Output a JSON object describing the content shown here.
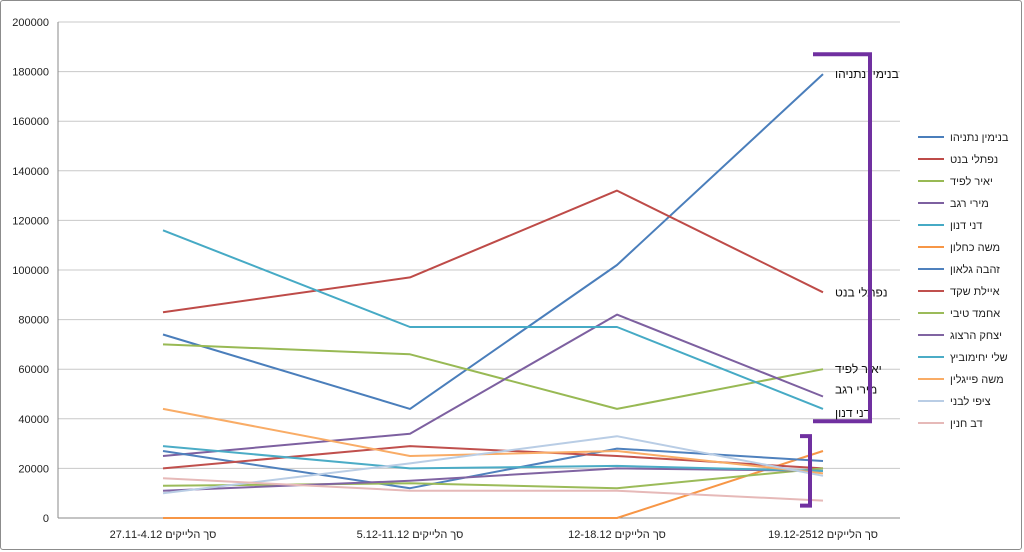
{
  "chart_data": {
    "type": "line",
    "categories": [
      "סך הלייקים 27.11-4.12",
      "סך הלייקים 5.12-11.12",
      "סך הלייקים 12-18.12",
      "סך הלייקים 19.12-2512"
    ],
    "ylim": [
      0,
      200000
    ],
    "yticks": [
      0,
      20000,
      40000,
      60000,
      80000,
      100000,
      120000,
      140000,
      160000,
      180000,
      200000
    ],
    "grid": "horizontal",
    "legend_position": "right",
    "series": [
      {
        "name": "בנימין נתניהו",
        "color": "#4a7ebb",
        "values": [
          74000,
          44000,
          102000,
          179000
        ]
      },
      {
        "name": "נפתלי בנט",
        "color": "#be4b48",
        "values": [
          83000,
          97000,
          132000,
          91000
        ]
      },
      {
        "name": "יאיר לפיד",
        "color": "#98b954",
        "values": [
          70000,
          66000,
          44000,
          60000
        ]
      },
      {
        "name": "מירי רגב",
        "color": "#7d60a0",
        "values": [
          25000,
          34000,
          82000,
          49000
        ]
      },
      {
        "name": "דני דנון",
        "color": "#46aac5",
        "values": [
          116000,
          77000,
          77000,
          44000
        ]
      },
      {
        "name": "משה כחלון",
        "color": "#f79646",
        "values": [
          0,
          0,
          0,
          27000
        ]
      },
      {
        "name": "זהבה גלאון",
        "color": "#4f81bd",
        "values": [
          27000,
          12000,
          28000,
          23000
        ]
      },
      {
        "name": "איילת שקד",
        "color": "#c0504d",
        "values": [
          20000,
          29000,
          25000,
          20000
        ]
      },
      {
        "name": "אחמד טיבי",
        "color": "#9bbb59",
        "values": [
          13000,
          14000,
          12000,
          20000
        ]
      },
      {
        "name": "יצחק הרצוג",
        "color": "#8064a2",
        "values": [
          11000,
          15000,
          20000,
          19000
        ]
      },
      {
        "name": "שלי יחימוביץ",
        "color": "#4bacc6",
        "values": [
          29000,
          20000,
          21000,
          19000
        ]
      },
      {
        "name": "משה פייגלין",
        "color": "#f9ac66",
        "values": [
          44000,
          25000,
          27000,
          18000
        ]
      },
      {
        "name": "ציפי לבני",
        "color": "#b9cde5",
        "values": [
          10000,
          22000,
          33000,
          17000
        ]
      },
      {
        "name": "דב חנין",
        "color": "#e6b9b8",
        "values": [
          16000,
          11000,
          11000,
          7000
        ]
      }
    ],
    "annotations": [
      {
        "text": "בנימין נתניהו",
        "series": 0
      },
      {
        "text": "נפתלי בנט",
        "series": 1
      },
      {
        "text": "יאיר לפיד",
        "series": 2
      },
      {
        "text": "מירי רגב",
        "series": 3
      },
      {
        "text": "דני דנון",
        "series": 4
      }
    ],
    "brackets": [
      {
        "from": 39000,
        "to": 187000,
        "color": "#7030a0"
      },
      {
        "from": 5000,
        "to": 33000,
        "color": "#7030a0"
      }
    ]
  }
}
